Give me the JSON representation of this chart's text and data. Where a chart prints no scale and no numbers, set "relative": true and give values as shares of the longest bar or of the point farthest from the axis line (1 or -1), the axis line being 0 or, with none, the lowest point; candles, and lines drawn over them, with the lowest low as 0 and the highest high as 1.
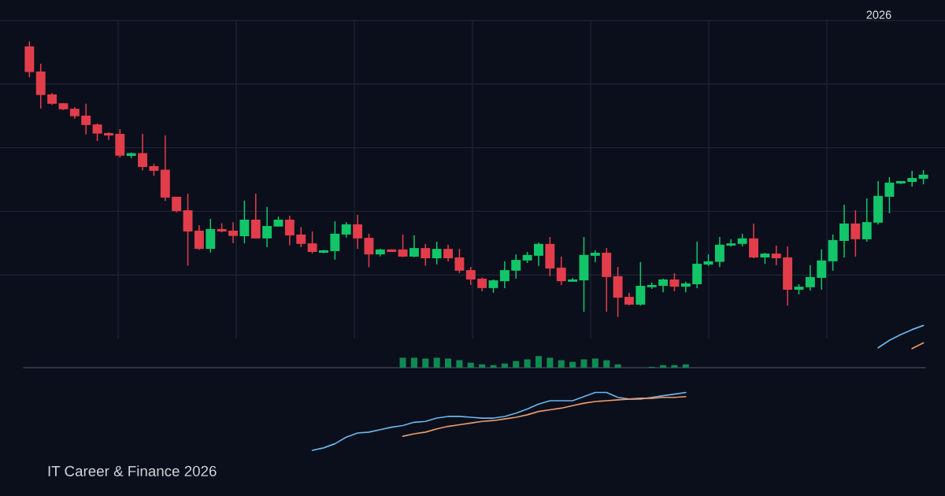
{
  "chart_data": [
    {
      "type": "candlestick",
      "relative": true,
      "grid": true,
      "categories": [
        null,
        null,
        null,
        null,
        null,
        null,
        null,
        null,
        null,
        null,
        null,
        null,
        null,
        null,
        null,
        null,
        null,
        null,
        null,
        null,
        null,
        null,
        null,
        null,
        null,
        null,
        null,
        null,
        null,
        null,
        null,
        null,
        null,
        null,
        null,
        null,
        null,
        null,
        null,
        null,
        null,
        null,
        null,
        null,
        null,
        null,
        null,
        null,
        null,
        null,
        null,
        null,
        null,
        null,
        null,
        null,
        null,
        null,
        null,
        null,
        null,
        null,
        null,
        null,
        null,
        null,
        null,
        null,
        null,
        null,
        null,
        null,
        null,
        null,
        null,
        null,
        null,
        null,
        null,
        null
      ],
      "ohlc": [
        [
          0.981,
          1.0,
          0.869,
          0.888
        ],
        [
          0.89,
          0.918,
          0.756,
          0.805
        ],
        [
          0.807,
          0.812,
          0.769,
          0.773
        ],
        [
          0.775,
          0.776,
          0.75,
          0.753
        ],
        [
          0.755,
          0.76,
          0.719,
          0.728
        ],
        [
          0.73,
          0.773,
          0.662,
          0.696
        ],
        [
          0.698,
          0.702,
          0.638,
          0.665
        ],
        [
          0.667,
          0.67,
          0.642,
          0.658
        ],
        [
          0.664,
          0.681,
          0.578,
          0.585
        ],
        [
          0.584,
          0.596,
          0.576,
          0.594
        ],
        [
          0.594,
          0.664,
          0.531,
          0.544
        ],
        [
          0.547,
          0.555,
          0.512,
          0.53
        ],
        [
          0.534,
          0.658,
          0.421,
          0.433
        ],
        [
          0.436,
          0.436,
          0.379,
          0.384
        ],
        [
          0.387,
          0.447,
          0.186,
          0.31
        ],
        [
          0.313,
          0.333,
          0.243,
          0.247
        ],
        [
          0.247,
          0.356,
          0.234,
          0.319
        ],
        [
          0.319,
          0.34,
          0.307,
          0.31
        ],
        [
          0.313,
          0.344,
          0.268,
          0.294
        ],
        [
          0.293,
          0.422,
          0.267,
          0.353
        ],
        [
          0.353,
          0.447,
          0.284,
          0.285
        ],
        [
          0.285,
          0.399,
          0.253,
          0.33
        ],
        [
          0.328,
          0.364,
          0.328,
          0.353
        ],
        [
          0.353,
          0.367,
          0.26,
          0.296
        ],
        [
          0.299,
          0.326,
          0.253,
          0.265
        ],
        [
          0.267,
          0.31,
          0.23,
          0.236
        ],
        [
          0.233,
          0.243,
          0.231,
          0.242
        ],
        [
          0.239,
          0.347,
          0.208,
          0.302
        ],
        [
          0.299,
          0.344,
          0.288,
          0.336
        ],
        [
          0.336,
          0.37,
          0.247,
          0.285
        ],
        [
          0.287,
          0.302,
          0.18,
          0.227
        ],
        [
          0.227,
          0.247,
          0.22,
          0.245
        ],
        [
          0.245,
          0.245,
          0.236,
          0.236
        ],
        [
          0.245,
          0.299,
          0.217,
          0.219
        ],
        [
          0.219,
          0.296,
          0.217,
          0.25
        ],
        [
          0.25,
          0.265,
          0.186,
          0.213
        ],
        [
          0.213,
          0.273,
          0.191,
          0.247
        ],
        [
          0.247,
          0.262,
          0.202,
          0.213
        ],
        [
          0.216,
          0.247,
          0.159,
          0.168
        ],
        [
          0.17,
          0.182,
          0.116,
          0.136
        ],
        [
          0.139,
          0.143,
          0.093,
          0.105
        ],
        [
          0.105,
          0.136,
          0.088,
          0.133
        ],
        [
          0.13,
          0.202,
          0.105,
          0.17
        ],
        [
          0.168,
          0.227,
          0.139,
          0.207
        ],
        [
          0.205,
          0.236,
          0.196,
          0.225
        ],
        [
          0.222,
          0.27,
          0.185,
          0.265
        ],
        [
          0.265,
          0.29,
          0.148,
          0.176
        ],
        [
          0.179,
          0.219,
          0.116,
          0.13
        ],
        [
          0.128,
          0.142,
          0.128,
          0.136
        ],
        [
          0.133,
          0.29,
          0.019,
          0.225
        ],
        [
          0.222,
          0.242,
          0.199,
          0.233
        ],
        [
          0.233,
          0.25,
          0.019,
          0.145
        ],
        [
          0.148,
          0.182,
          0.0,
          0.07
        ],
        [
          0.073,
          0.088,
          0.042,
          0.045
        ],
        [
          0.045,
          0.199,
          0.042,
          0.113
        ],
        [
          0.108,
          0.125,
          0.102,
          0.116
        ],
        [
          0.113,
          0.139,
          0.09,
          0.136
        ],
        [
          0.136,
          0.159,
          0.093,
          0.11
        ],
        [
          0.11,
          0.128,
          0.09,
          0.122
        ],
        [
          0.119,
          0.273,
          0.105,
          0.193
        ],
        [
          0.19,
          0.227,
          0.185,
          0.202
        ],
        [
          0.2,
          0.29,
          0.181,
          0.262
        ],
        [
          0.259,
          0.282,
          0.255,
          0.267
        ],
        [
          0.265,
          0.302,
          0.256,
          0.285
        ],
        [
          0.285,
          0.339,
          0.213,
          0.216
        ],
        [
          0.216,
          0.233,
          0.193,
          0.23
        ],
        [
          0.23,
          0.259,
          0.188,
          0.213
        ],
        [
          0.216,
          0.256,
          0.042,
          0.099
        ],
        [
          0.099,
          0.119,
          0.082,
          0.11
        ],
        [
          0.108,
          0.188,
          0.096,
          0.145
        ],
        [
          0.142,
          0.245,
          0.099,
          0.205
        ],
        [
          0.202,
          0.299,
          0.168,
          0.279
        ],
        [
          0.276,
          0.407,
          0.216,
          0.339
        ],
        [
          0.339,
          0.387,
          0.219,
          0.282
        ],
        [
          0.282,
          0.43,
          0.273,
          0.344
        ],
        [
          0.342,
          0.493,
          0.336,
          0.439
        ],
        [
          0.436,
          0.507,
          0.376,
          0.487
        ],
        [
          0.484,
          0.493,
          0.482,
          0.493
        ],
        [
          0.49,
          0.53,
          0.473,
          0.504
        ],
        [
          0.501,
          0.533,
          0.481,
          0.516
        ]
      ],
      "colors": [
        "#e23d4b",
        "#e23d4b",
        "#e23d4b",
        "#e23d4b",
        "#e23d4b",
        "#e23d4b",
        "#e23d4b",
        "#e23d4b",
        "#e23d4b",
        "#12c569",
        "#e23d4b",
        "#e23d4b",
        "#e23d4b",
        "#e23d4b",
        "#e23d4b",
        "#e23d4b",
        "#12c569",
        "#e23d4b",
        "#e23d4b",
        "#12c569",
        "#e23d4b",
        "#12c569",
        "#12c569",
        "#e23d4b",
        "#e23d4b",
        "#e23d4b",
        "#12c569",
        "#12c569",
        "#12c569",
        "#e23d4b",
        "#e23d4b",
        "#12c569",
        "#e23d4b",
        "#e23d4b",
        "#12c569",
        "#e23d4b",
        "#12c569",
        "#e23d4b",
        "#e23d4b",
        "#e23d4b",
        "#e23d4b",
        "#12c569",
        "#12c569",
        "#12c569",
        "#12c569",
        "#12c569",
        "#e23d4b",
        "#e23d4b",
        "#12c569",
        "#12c569",
        "#12c569",
        "#e23d4b",
        "#e23d4b",
        "#e23d4b",
        "#12c569",
        "#12c569",
        "#12c569",
        "#e23d4b",
        "#12c569",
        "#12c569",
        "#12c569",
        "#12c569",
        "#12c569",
        "#12c569",
        "#e23d4b",
        "#12c569",
        "#e23d4b",
        "#e23d4b",
        "#12c569",
        "#12c569",
        "#12c569",
        "#12c569",
        "#12c569",
        "#e23d4b",
        "#12c569",
        "#12c569",
        "#12c569",
        "#12c569",
        "#12c569",
        "#12c569"
      ],
      "annotations": [
        "2026",
        "IT Career & Finance 2026"
      ]
    },
    {
      "type": "bar",
      "relative": true,
      "categories": [
        null,
        null,
        null,
        null,
        null,
        null,
        null,
        null,
        null,
        null,
        null,
        null,
        null,
        null,
        null,
        null,
        null,
        null,
        null,
        null,
        null,
        null,
        null,
        null,
        null,
        null,
        null,
        null,
        null,
        null,
        null,
        null,
        null,
        null,
        null,
        null,
        null,
        null,
        null,
        null,
        null,
        null,
        null,
        null,
        null,
        null,
        null,
        null,
        null,
        null,
        null,
        null,
        null,
        null,
        null,
        null,
        null,
        null,
        null,
        null,
        null,
        null,
        null,
        null,
        null,
        null,
        null,
        null,
        null,
        null,
        null,
        null,
        null,
        null,
        null,
        null,
        null,
        null,
        null,
        null
      ],
      "series": [
        {
          "type": "bar",
          "color": "#0f8a52",
          "values": [
            null,
            null,
            null,
            null,
            null,
            null,
            null,
            null,
            null,
            null,
            null,
            null,
            null,
            null,
            null,
            null,
            null,
            null,
            null,
            null,
            null,
            null,
            null,
            null,
            null,
            null,
            null,
            null,
            null,
            null,
            null,
            null,
            null,
            0.12,
            0.12,
            0.11,
            0.12,
            0.11,
            0.09,
            0.06,
            0.04,
            0.03,
            0.05,
            0.08,
            0.1,
            0.14,
            0.12,
            0.09,
            0.07,
            0.1,
            0.11,
            0.09,
            0.04,
            null,
            null,
            0.01,
            0.03,
            0.03,
            0.04,
            null,
            null,
            null,
            null,
            null,
            null,
            null,
            null,
            null,
            null,
            null,
            null,
            null,
            null,
            null,
            null,
            null,
            null,
            null,
            null,
            null
          ]
        },
        {
          "type": "line",
          "color": "#6bb6ee",
          "values": [
            null,
            null,
            null,
            null,
            null,
            null,
            null,
            null,
            null,
            null,
            null,
            null,
            null,
            null,
            null,
            null,
            null,
            null,
            null,
            null,
            null,
            null,
            null,
            null,
            null,
            -1.0,
            -0.97,
            -0.92,
            -0.84,
            -0.79,
            -0.78,
            -0.75,
            -0.72,
            -0.7,
            -0.66,
            -0.65,
            -0.61,
            -0.59,
            -0.59,
            -0.6,
            -0.61,
            -0.61,
            -0.59,
            -0.55,
            -0.5,
            -0.44,
            -0.4,
            -0.4,
            -0.4,
            -0.35,
            -0.3,
            -0.3,
            -0.36,
            -0.38,
            -0.38,
            -0.36,
            -0.34,
            -0.32,
            -0.3,
            null,
            null,
            null,
            null,
            null,
            null,
            null,
            null,
            null,
            null,
            null,
            null,
            null,
            null,
            null,
            null,
            0.24,
            0.33,
            0.4,
            0.46,
            0.51
          ]
        },
        {
          "type": "line",
          "color": "#eb9a6c",
          "values": [
            null,
            null,
            null,
            null,
            null,
            null,
            null,
            null,
            null,
            null,
            null,
            null,
            null,
            null,
            null,
            null,
            null,
            null,
            null,
            null,
            null,
            null,
            null,
            null,
            null,
            null,
            null,
            null,
            null,
            null,
            null,
            null,
            null,
            -0.83,
            -0.8,
            -0.78,
            -0.74,
            -0.71,
            -0.69,
            -0.67,
            -0.65,
            -0.64,
            -0.62,
            -0.6,
            -0.57,
            -0.53,
            -0.51,
            -0.49,
            -0.46,
            -0.43,
            -0.41,
            -0.4,
            -0.39,
            -0.38,
            -0.37,
            -0.37,
            -0.36,
            -0.36,
            -0.35,
            null,
            null,
            null,
            null,
            null,
            null,
            null,
            null,
            null,
            null,
            null,
            null,
            null,
            null,
            null,
            null,
            null,
            null,
            null,
            0.23,
            0.3
          ]
        }
      ]
    }
  ]
}
